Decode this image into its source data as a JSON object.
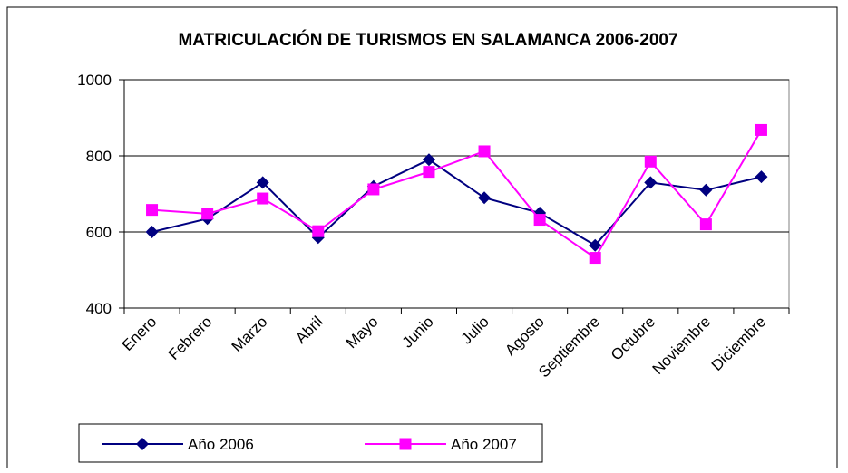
{
  "chart_data": {
    "type": "line",
    "title": "MATRICULACIÓN DE TURISMOS EN SALAMANCA 2006-2007",
    "categories": [
      "Enero",
      "Febrero",
      "Marzo",
      "Abril",
      "Mayo",
      "Junio",
      "Julio",
      "Agosto",
      "Septiembre",
      "Octubre",
      "Noviembre",
      "Diciembre"
    ],
    "series": [
      {
        "name": "Año 2006",
        "color": "#000080",
        "marker": "diamond",
        "values": [
          600,
          635,
          730,
          585,
          720,
          790,
          690,
          650,
          565,
          730,
          710,
          745
        ]
      },
      {
        "name": "Año 2007",
        "color": "#ff00ff",
        "marker": "square",
        "values": [
          658,
          648,
          688,
          602,
          712,
          758,
          812,
          632,
          532,
          785,
          620,
          868
        ]
      }
    ],
    "ylim": [
      400,
      1000
    ],
    "yticks": [
      400,
      600,
      800,
      1000
    ],
    "grid": true,
    "legend": "bottom"
  }
}
